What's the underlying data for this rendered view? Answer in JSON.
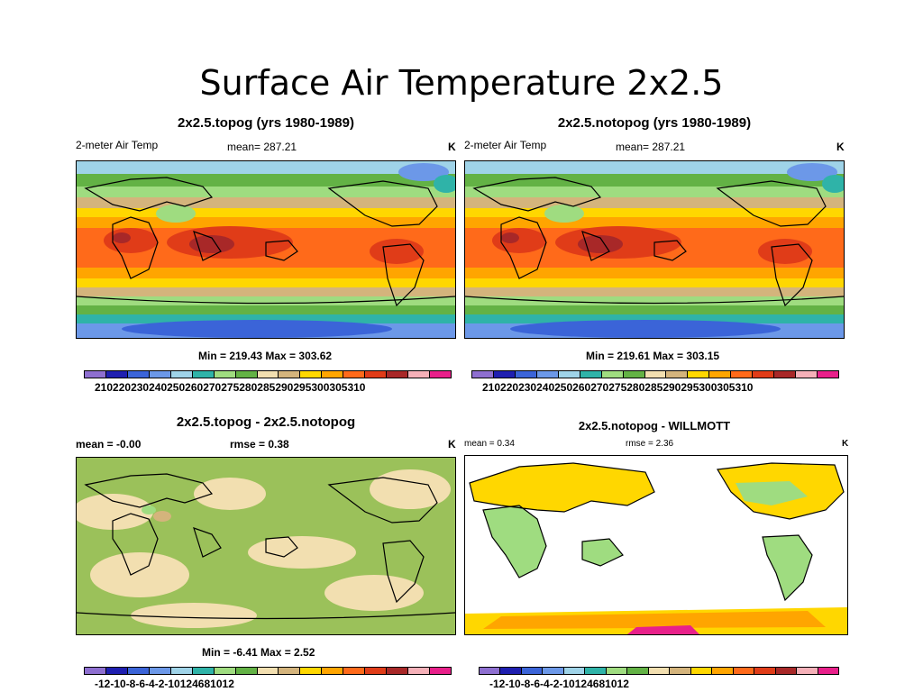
{
  "slide_title": "Surface Air Temperature 2x2.5",
  "panels": [
    {
      "title": "2x2.5.topog (yrs 1980-1989)",
      "left_label": "2-meter Air Temp",
      "center_label": "mean= 287.21",
      "right_label": "K",
      "minmax": "Min = 219.43 Max = 303.62"
    },
    {
      "title": "2x2.5.notopog (yrs 1980-1989)",
      "left_label": "2-meter Air Temp",
      "center_label": "mean= 287.21",
      "right_label": "K",
      "minmax": "Min = 219.61 Max = 303.15"
    },
    {
      "title": "2x2.5.topog - 2x2.5.notopog",
      "left_label": "mean =  -0.00",
      "center_label": "rmse =   0.38",
      "right_label": "K",
      "minmax": "Min =  -6.41 Max =   2.52"
    },
    {
      "title": "2x2.5.notopog - WILLMOTT",
      "left_label": "mean =  0.34",
      "center_label": "rmse =  2.36",
      "right_label": "K"
    }
  ],
  "colorbars": {
    "temperature": {
      "ticks": [
        "210",
        "220",
        "230",
        "240",
        "250",
        "260",
        "270",
        "275",
        "280",
        "285",
        "290",
        "295",
        "300",
        "305",
        "310"
      ],
      "colors": [
        "#8e6fd0",
        "#1f1fb0",
        "#3b64d8",
        "#6c98e8",
        "#9fd3e8",
        "#2fb3a8",
        "#9fdc80",
        "#63b245",
        "#f2dfb0",
        "#d4b47c",
        "#ffd700",
        "#ffa500",
        "#ff6a1a",
        "#e03c18",
        "#a82828",
        "#f5b0b8",
        "#e8208a"
      ]
    },
    "difference": {
      "ticks": [
        "-12",
        "-10",
        "-8",
        "-6",
        "-4",
        "-2",
        "-1",
        "0",
        "1",
        "2",
        "4",
        "6",
        "8",
        "10",
        "12"
      ],
      "colors": [
        "#8e6fd0",
        "#1f1fb0",
        "#3b64d8",
        "#6c98e8",
        "#9fd3e8",
        "#2fb3a8",
        "#9fdc80",
        "#63b245",
        "#f2dfb0",
        "#d4b47c",
        "#ffd700",
        "#ffa500",
        "#ff6a1a",
        "#e03c18",
        "#a82828",
        "#f5b0b8",
        "#e8208a"
      ]
    }
  }
}
